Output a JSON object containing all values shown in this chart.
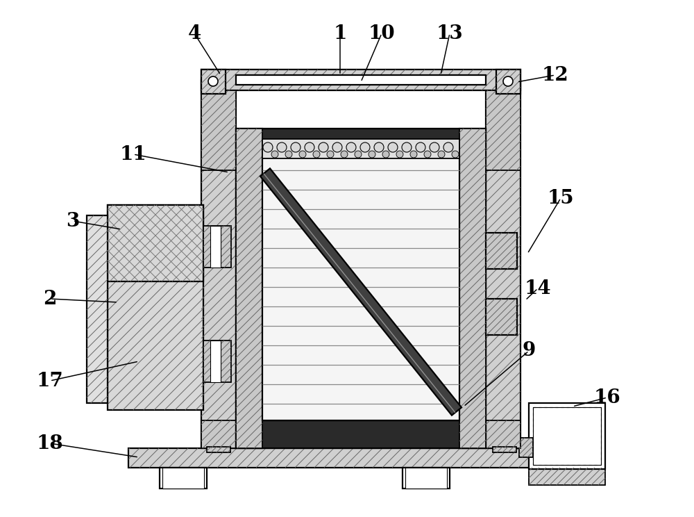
{
  "bg_color": "#ffffff",
  "figsize": [
    10.0,
    7.44
  ],
  "dpi": 100,
  "label_arrows": {
    "1": {
      "lpos": [
        490,
        48
      ],
      "aend": [
        490,
        108
      ]
    },
    "4": {
      "lpos": [
        280,
        48
      ],
      "aend": [
        318,
        108
      ]
    },
    "10": {
      "lpos": [
        550,
        48
      ],
      "aend": [
        520,
        118
      ]
    },
    "13": {
      "lpos": [
        648,
        48
      ],
      "aend": [
        635,
        108
      ]
    },
    "12": {
      "lpos": [
        800,
        108
      ],
      "aend": [
        745,
        118
      ]
    },
    "11": {
      "lpos": [
        192,
        222
      ],
      "aend": [
        330,
        248
      ]
    },
    "3": {
      "lpos": [
        105,
        318
      ],
      "aend": [
        175,
        330
      ]
    },
    "2": {
      "lpos": [
        72,
        430
      ],
      "aend": [
        170,
        435
      ]
    },
    "15": {
      "lpos": [
        808,
        285
      ],
      "aend": [
        760,
        365
      ]
    },
    "14": {
      "lpos": [
        775,
        415
      ],
      "aend": [
        757,
        432
      ]
    },
    "9": {
      "lpos": [
        762,
        505
      ],
      "aend": [
        668,
        585
      ]
    },
    "16": {
      "lpos": [
        875,
        572
      ],
      "aend": [
        825,
        585
      ]
    },
    "17": {
      "lpos": [
        72,
        548
      ],
      "aend": [
        200,
        520
      ]
    },
    "18": {
      "lpos": [
        72,
        638
      ],
      "aend": [
        200,
        658
      ]
    }
  }
}
